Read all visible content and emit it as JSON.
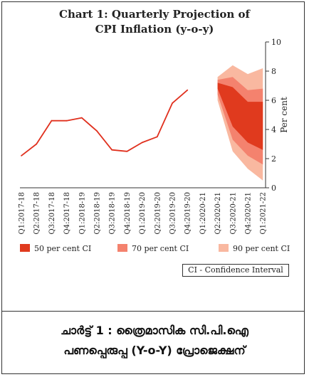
{
  "chart_data": {
    "type": "area",
    "title": "Chart 1: Quarterly Projection of",
    "subtitle": "CPI Inflation (y-o-y)",
    "ylabel": "Per cent",
    "ylim": [
      0,
      10
    ],
    "yticks": [
      0,
      2,
      4,
      6,
      8,
      10
    ],
    "y_axis_side": "right",
    "legend_position": "bottom",
    "categories": [
      "Q1:2017-18",
      "Q2:2017-18",
      "Q3:2017-18",
      "Q4:2017-18",
      "Q1:2018-19",
      "Q2:2018-19",
      "Q3:2018-19",
      "Q4:2018-19",
      "Q1:2019-20",
      "Q2:2019-20",
      "Q3:2019-20",
      "Q4:2019-20",
      "Q1:2020-21",
      "Q2:2020-21",
      "Q3:2020-21",
      "Q4:2020-21",
      "Q1:2021-22"
    ],
    "actual": [
      2.2,
      3.0,
      4.6,
      4.6,
      4.8,
      3.9,
      2.6,
      2.5,
      3.1,
      3.5,
      5.8,
      6.7
    ],
    "projection_categories": [
      "Q2:2020-21",
      "Q3:2020-21",
      "Q4:2020-21",
      "Q1:2021-22"
    ],
    "bands": [
      {
        "name": "90 per cent CI",
        "color": "#f9b8a0",
        "upper": [
          7.6,
          8.4,
          7.8,
          8.2
        ],
        "lower": [
          6.0,
          2.5,
          1.3,
          0.5
        ]
      },
      {
        "name": "70 per cent CI",
        "color": "#f4826e",
        "upper": [
          7.4,
          7.6,
          6.7,
          6.8
        ],
        "lower": [
          6.4,
          3.3,
          2.2,
          1.6
        ]
      },
      {
        "name": "50 per cent CI",
        "color": "#e03a1e",
        "upper": [
          7.2,
          6.9,
          5.9,
          5.9
        ],
        "lower": [
          6.8,
          4.2,
          3.1,
          2.6
        ]
      }
    ],
    "line_color": "#e0301e"
  },
  "ci_note": "CI - Confidence Interval",
  "caption_line1": "ചാര്‍ട്ട് 1 : ത്രൈമാസിക സി.പി.ഐ",
  "caption_line2": "പണപ്പെരുപ്പ (Y-o-Y) പ്രോജെക്ഷന്"
}
